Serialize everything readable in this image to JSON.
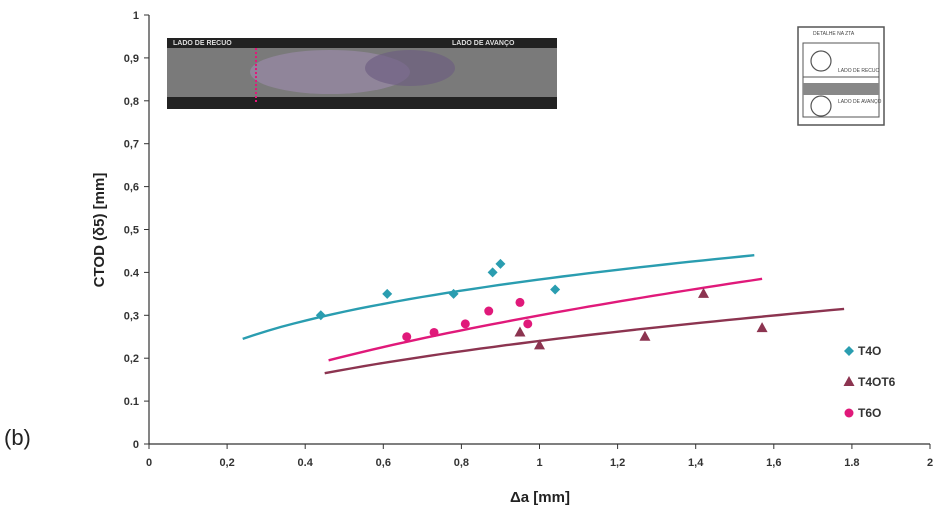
{
  "panel_label": "(b)",
  "inset_macro": {
    "left_label": "LADO DE RECUO",
    "right_label": "LADO DE AVANÇO"
  },
  "inset_detail": {
    "title": "DETALHE NA ZTA",
    "upper_label": "LADO DE RECUO",
    "lower_label": "LADO DE AVANÇO"
  },
  "chart_data": {
    "type": "scatter",
    "xlabel": "Δa [mm]",
    "ylabel": "CTOD (δ5) [mm]",
    "xlim": [
      0,
      2
    ],
    "ylim": [
      0,
      1
    ],
    "x_ticks": [
      "0",
      "0,2",
      "0.4",
      "0,6",
      "0,8",
      "1",
      "1,2",
      "1,4",
      "1,6",
      "1.8",
      "2"
    ],
    "y_ticks": [
      "0",
      "0.1",
      "0,2",
      "0,3",
      "0.4",
      "0,5",
      "0,6",
      "0,7",
      "0,8",
      "0,9",
      "1"
    ],
    "grid": false,
    "legend_position": "right",
    "series": [
      {
        "name": "T4O",
        "color": "#2a9db0",
        "marker": "diamond",
        "points": [
          [
            0.44,
            0.3
          ],
          [
            0.61,
            0.35
          ],
          [
            0.78,
            0.35
          ],
          [
            0.88,
            0.4
          ],
          [
            0.9,
            0.42
          ],
          [
            1.04,
            0.36
          ]
        ],
        "fit": {
          "x_start": 0.24,
          "x_end": 1.55,
          "y_start": 0.245,
          "y_end": 0.44
        }
      },
      {
        "name": "T4OT6",
        "color": "#8c3450",
        "marker": "triangle",
        "points": [
          [
            0.95,
            0.26
          ],
          [
            1.0,
            0.23
          ],
          [
            1.27,
            0.25
          ],
          [
            1.42,
            0.35
          ],
          [
            1.57,
            0.27
          ]
        ],
        "fit": {
          "x_start": 0.45,
          "x_end": 1.78,
          "y_start": 0.165,
          "y_end": 0.315
        }
      },
      {
        "name": "T6O",
        "color": "#e0197a",
        "marker": "circle",
        "points": [
          [
            0.66,
            0.25
          ],
          [
            0.73,
            0.26
          ],
          [
            0.81,
            0.28
          ],
          [
            0.87,
            0.31
          ],
          [
            0.95,
            0.33
          ],
          [
            0.97,
            0.28
          ]
        ],
        "fit": {
          "x_start": 0.46,
          "x_end": 1.57,
          "y_start": 0.195,
          "y_end": 0.385
        }
      }
    ]
  }
}
